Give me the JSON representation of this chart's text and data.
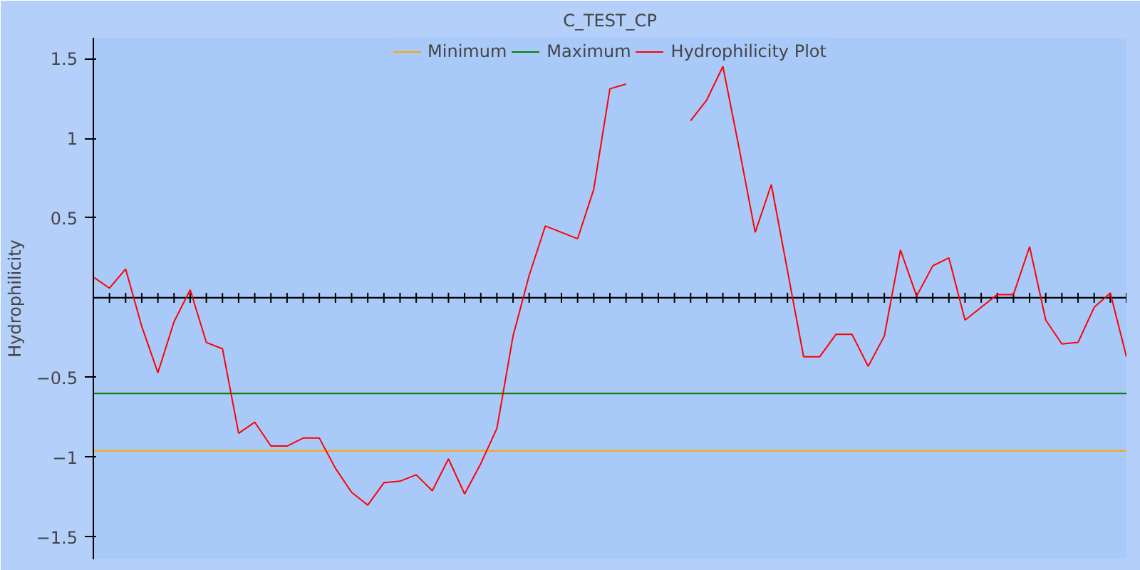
{
  "chart_data": {
    "type": "line",
    "title": "C_TEST_CP",
    "ylabel": "Hydrophilicity",
    "categories": [
      null,
      null,
      null,
      null,
      null,
      null,
      null,
      null,
      null,
      null,
      null,
      null,
      null,
      null,
      null,
      null,
      null,
      null,
      null,
      null,
      null,
      null,
      null,
      null,
      null,
      null,
      null,
      null,
      null,
      null,
      null,
      null,
      null,
      null,
      null,
      null,
      null,
      null,
      null,
      null,
      null,
      null,
      null,
      null,
      null,
      null,
      null,
      null,
      null,
      null,
      null,
      null,
      null,
      null,
      null,
      null,
      null,
      null,
      null,
      null,
      null,
      null,
      null,
      null,
      null
    ],
    "series": [
      {
        "name": "Minimum",
        "color": "#ffa500",
        "values": [
          -0.96,
          -0.96,
          -0.96,
          -0.96,
          -0.96,
          -0.96,
          -0.96,
          -0.96,
          -0.96,
          -0.96,
          -0.96,
          -0.96,
          -0.96,
          -0.96,
          -0.96,
          -0.96,
          -0.96,
          -0.96,
          -0.96,
          -0.96,
          -0.96,
          -0.96,
          -0.96,
          -0.96,
          -0.96,
          -0.96,
          -0.96,
          -0.96,
          -0.96,
          -0.96,
          -0.96,
          -0.96,
          -0.96,
          -0.96,
          -0.96,
          -0.96,
          -0.96,
          -0.96,
          -0.96,
          -0.96,
          -0.96,
          -0.96,
          -0.96,
          -0.96,
          -0.96,
          -0.96,
          -0.96,
          -0.96,
          -0.96,
          -0.96,
          -0.96,
          -0.96,
          -0.96,
          -0.96,
          -0.96,
          -0.96,
          -0.96,
          -0.96,
          -0.96,
          -0.96,
          -0.96,
          -0.96,
          -0.96,
          -0.96,
          -0.96
        ]
      },
      {
        "name": "Maximum",
        "color": "#008000",
        "values": [
          -0.6,
          -0.6,
          -0.6,
          -0.6,
          -0.6,
          -0.6,
          -0.6,
          -0.6,
          -0.6,
          -0.6,
          -0.6,
          -0.6,
          -0.6,
          -0.6,
          -0.6,
          -0.6,
          -0.6,
          -0.6,
          -0.6,
          -0.6,
          -0.6,
          -0.6,
          -0.6,
          -0.6,
          -0.6,
          -0.6,
          -0.6,
          -0.6,
          -0.6,
          -0.6,
          -0.6,
          -0.6,
          -0.6,
          -0.6,
          -0.6,
          -0.6,
          -0.6,
          -0.6,
          -0.6,
          -0.6,
          -0.6,
          -0.6,
          -0.6,
          -0.6,
          -0.6,
          -0.6,
          -0.6,
          -0.6,
          -0.6,
          -0.6,
          -0.6,
          -0.6,
          -0.6,
          -0.6,
          -0.6,
          -0.6,
          -0.6,
          -0.6,
          -0.6,
          -0.6,
          -0.6,
          -0.6,
          -0.6,
          -0.6,
          -0.6
        ]
      },
      {
        "name": "Hydrophilicity Plot",
        "color": "#ff0000",
        "values": [
          0.13,
          0.06,
          0.18,
          -0.18,
          -0.47,
          -0.15,
          0.05,
          -0.28,
          -0.32,
          -0.85,
          -0.78,
          -0.93,
          -0.93,
          -0.88,
          -0.88,
          -1.07,
          -1.22,
          -1.3,
          -1.16,
          -1.15,
          -1.11,
          -1.21,
          -1.01,
          -1.23,
          -1.04,
          -0.82,
          -0.24,
          0.14,
          0.45,
          0.41,
          0.37,
          0.68,
          1.31,
          1.34,
          null,
          null,
          null,
          1.11,
          1.24,
          1.45,
          0.94,
          0.41,
          0.71,
          0.17,
          -0.37,
          -0.37,
          -0.23,
          -0.23,
          -0.43,
          -0.24,
          0.3,
          0.01,
          0.2,
          0.25,
          -0.14,
          -0.06,
          0.02,
          0.02,
          0.32,
          -0.14,
          -0.29,
          -0.28,
          -0.06,
          0.03,
          -0.37
        ]
      }
    ],
    "ylim": [
      -1.64,
      1.63
    ],
    "yticks": [
      -1.5,
      -1,
      -0.5,
      0.5,
      1,
      1.5
    ],
    "grid": false,
    "legend": "top",
    "marker": "none",
    "line_style": "solid"
  }
}
